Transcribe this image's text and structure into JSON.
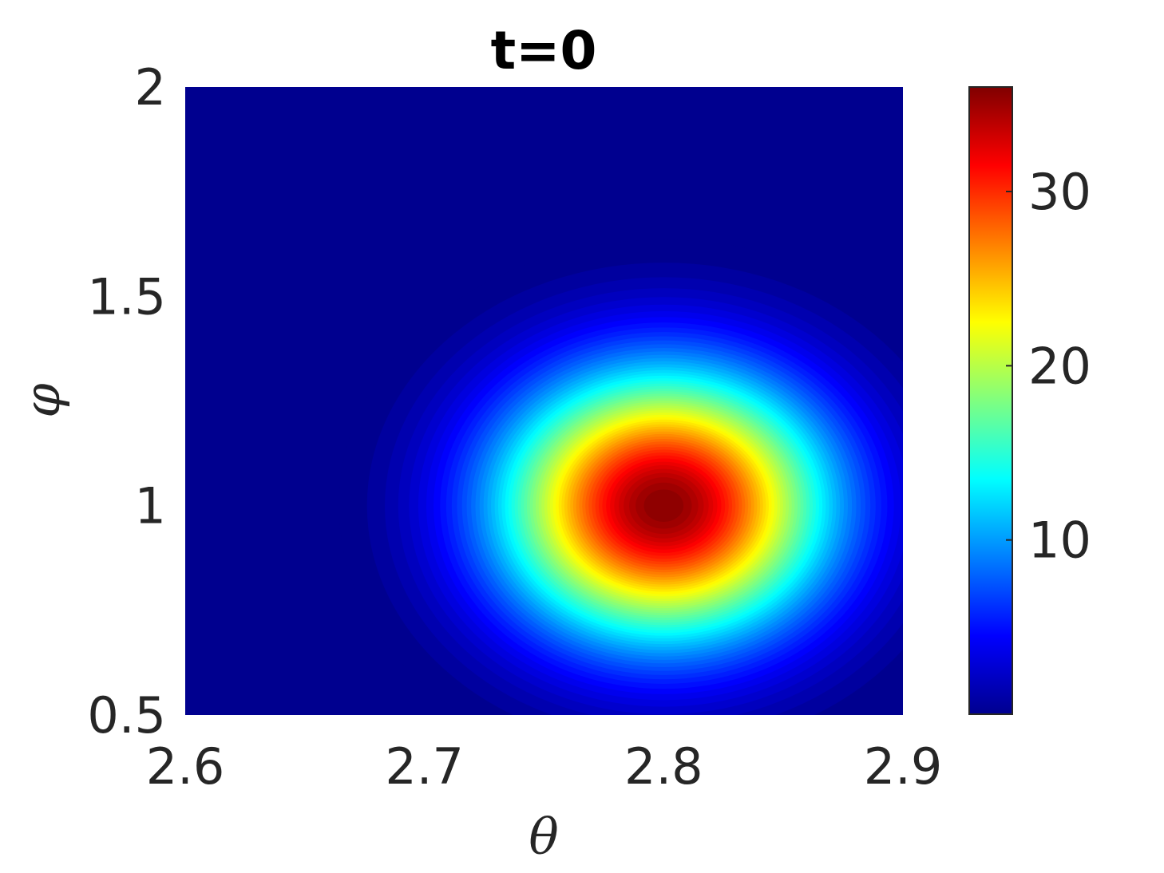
{
  "chart_data": {
    "type": "heatmap",
    "title": "t=0",
    "xlabel": "θ",
    "ylabel": "φ",
    "xlim": [
      2.6,
      2.9
    ],
    "ylim": [
      0.5,
      2
    ],
    "x_ticks": [
      "2.6",
      "2.7",
      "2.8",
      "2.9"
    ],
    "x_tick_values": [
      2.6,
      2.7,
      2.8,
      2.9
    ],
    "y_ticks": [
      "0.5",
      "1",
      "1.5",
      "2"
    ],
    "y_tick_values": [
      0.5,
      1,
      1.5,
      2
    ],
    "colorbar": {
      "colormap": "jet",
      "range": [
        0,
        36
      ],
      "ticks": [
        "10",
        "20",
        "30"
      ],
      "tick_values": [
        10,
        20,
        30
      ]
    },
    "peak": {
      "theta": 2.8,
      "phi": 1.0,
      "value": 36
    },
    "spread": {
      "theta": 0.047,
      "phi": 0.22
    },
    "background_color": "#00008f"
  }
}
